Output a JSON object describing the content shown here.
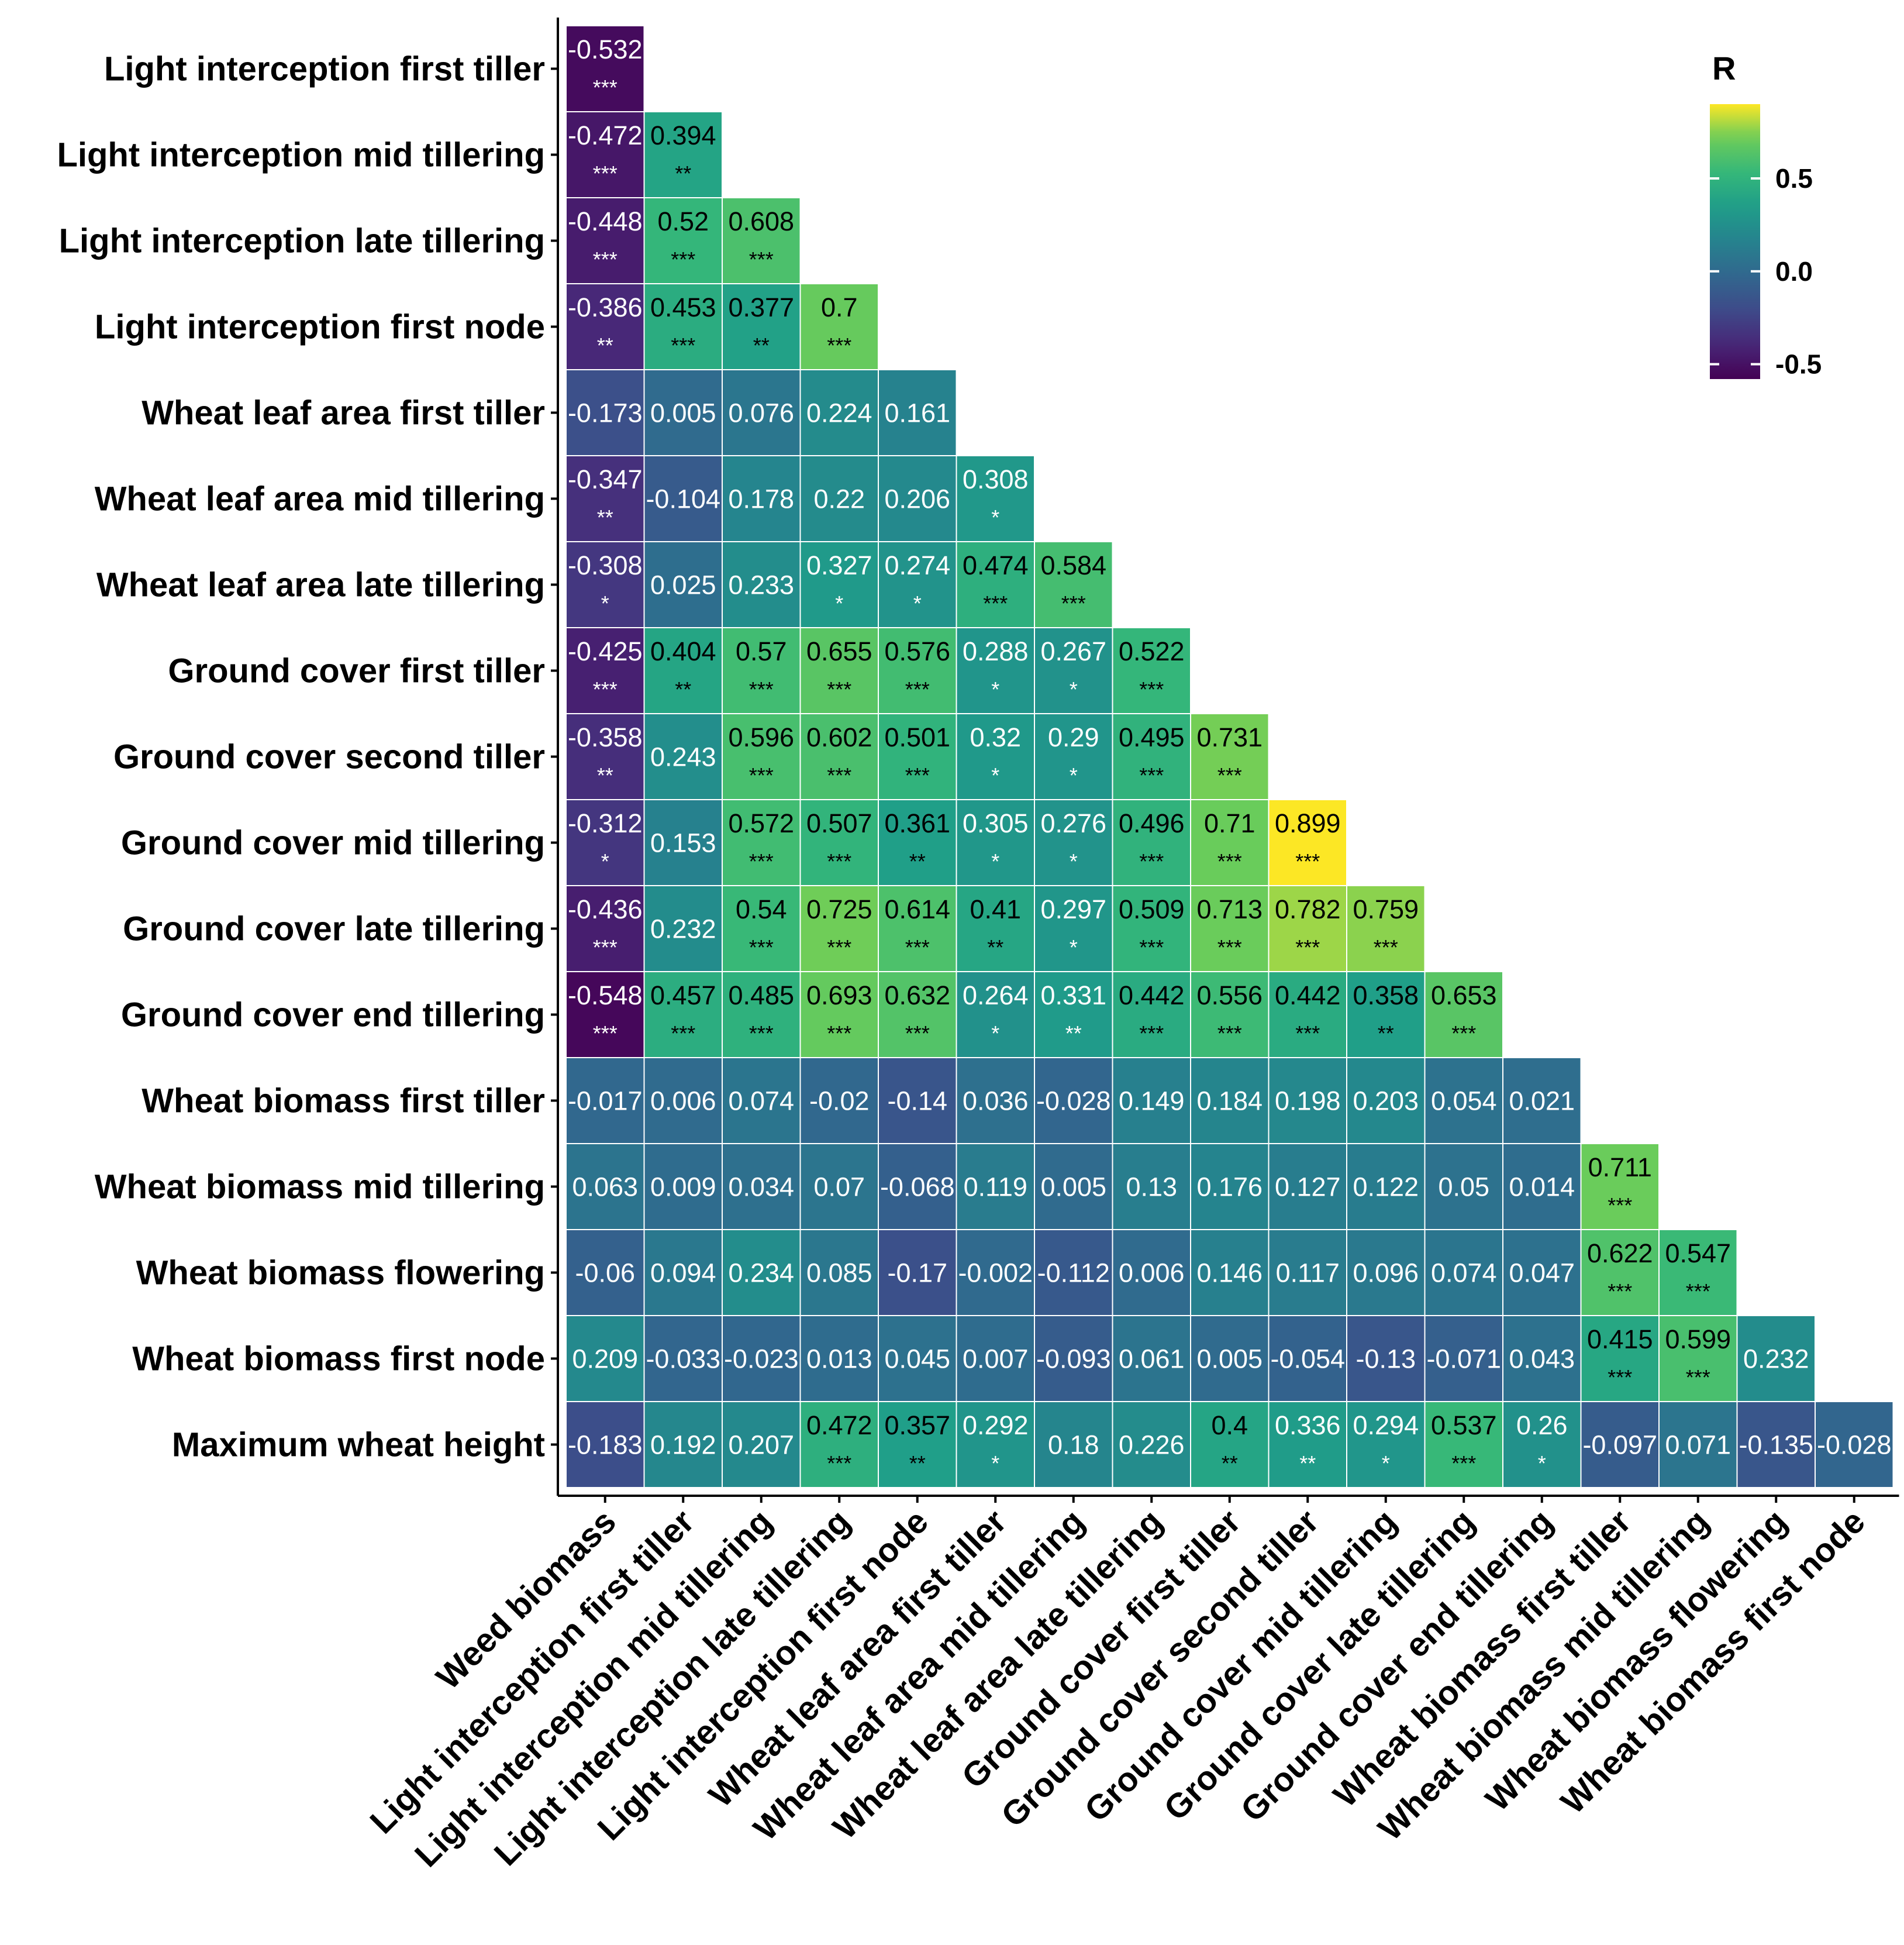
{
  "chart_data": {
    "type": "heatmap",
    "title": "",
    "xlabel": "",
    "ylabel": "",
    "row_labels": [
      "Light interception first tiller",
      "Light interception mid tillering",
      "Light interception late tillering",
      "Light interception first node",
      "Wheat leaf area first tiller",
      "Wheat leaf area mid tillering",
      "Wheat leaf area late tillering",
      "Ground cover first tiller",
      "Ground cover second tiller",
      "Ground cover mid tillering",
      "Ground cover late tillering",
      "Ground cover end tillering",
      "Wheat biomass first tiller",
      "Wheat biomass mid tillering",
      "Wheat biomass flowering",
      "Wheat biomass first node",
      "Maximum wheat height"
    ],
    "col_labels": [
      "Weed biomass",
      "Light interception first tiller",
      "Light interception mid tillering",
      "Light interception late tillering",
      "Light interception first node",
      "Wheat leaf area first tiller",
      "Wheat leaf area mid tillering",
      "Wheat leaf area late tillering",
      "Ground cover first tiller",
      "Ground cover second tiller",
      "Ground cover mid tillering",
      "Ground cover late tillering",
      "Ground cover end tillering",
      "Wheat biomass first tiller",
      "Wheat biomass mid tillering",
      "Wheat biomass flowering",
      "Wheat biomass first node"
    ],
    "values": [
      [
        -0.532
      ],
      [
        -0.472,
        0.394
      ],
      [
        -0.448,
        0.52,
        0.608
      ],
      [
        -0.386,
        0.453,
        0.377,
        0.7
      ],
      [
        -0.173,
        0.005,
        0.076,
        0.224,
        0.161
      ],
      [
        -0.347,
        -0.104,
        0.178,
        0.22,
        0.206,
        0.308
      ],
      [
        -0.308,
        0.025,
        0.233,
        0.327,
        0.274,
        0.474,
        0.584
      ],
      [
        -0.425,
        0.404,
        0.57,
        0.655,
        0.576,
        0.288,
        0.267,
        0.522
      ],
      [
        -0.358,
        0.243,
        0.596,
        0.602,
        0.501,
        0.32,
        0.29,
        0.495,
        0.731
      ],
      [
        -0.312,
        0.153,
        0.572,
        0.507,
        0.361,
        0.305,
        0.276,
        0.496,
        0.71,
        0.899
      ],
      [
        -0.436,
        0.232,
        0.54,
        0.725,
        0.614,
        0.41,
        0.297,
        0.509,
        0.713,
        0.782,
        0.759
      ],
      [
        -0.548,
        0.457,
        0.485,
        0.693,
        0.632,
        0.264,
        0.331,
        0.442,
        0.556,
        0.442,
        0.358,
        0.653
      ],
      [
        -0.017,
        0.006,
        0.074,
        -0.02,
        -0.14,
        0.036,
        -0.028,
        0.149,
        0.184,
        0.198,
        0.203,
        0.054,
        0.021
      ],
      [
        0.063,
        0.009,
        0.034,
        0.07,
        -0.068,
        0.119,
        0.005,
        0.13,
        0.176,
        0.127,
        0.122,
        0.05,
        0.014,
        0.711
      ],
      [
        -0.06,
        0.094,
        0.234,
        0.085,
        -0.17,
        -0.002,
        -0.112,
        0.006,
        0.146,
        0.117,
        0.096,
        0.074,
        0.047,
        0.622,
        0.547
      ],
      [
        0.209,
        -0.033,
        -0.023,
        0.013,
        0.045,
        0.007,
        -0.093,
        0.061,
        0.005,
        -0.054,
        -0.13,
        -0.071,
        0.043,
        0.415,
        0.599,
        0.232
      ],
      [
        -0.183,
        0.192,
        0.207,
        0.472,
        0.357,
        0.292,
        0.18,
        0.226,
        0.4,
        0.336,
        0.294,
        0.537,
        0.26,
        -0.097,
        0.071,
        -0.135,
        -0.028
      ]
    ],
    "significance": [
      [
        "***"
      ],
      [
        "***",
        "**"
      ],
      [
        "***",
        "***",
        "***"
      ],
      [
        "**",
        "***",
        "**",
        "***"
      ],
      [
        "",
        "",
        "",
        "",
        ""
      ],
      [
        "**",
        "",
        "",
        "",
        "",
        "*"
      ],
      [
        "*",
        "",
        "",
        "*",
        "*",
        "***",
        "***"
      ],
      [
        "***",
        "**",
        "***",
        "***",
        "***",
        "*",
        "*",
        "***"
      ],
      [
        "**",
        "",
        "***",
        "***",
        "***",
        "*",
        "*",
        "***",
        "***"
      ],
      [
        "*",
        "",
        "***",
        "***",
        "**",
        "*",
        "*",
        "***",
        "***",
        "***"
      ],
      [
        "***",
        "",
        "***",
        "***",
        "***",
        "**",
        "*",
        "***",
        "***",
        "***",
        "***"
      ],
      [
        "***",
        "***",
        "***",
        "***",
        "***",
        "*",
        "**",
        "***",
        "***",
        "***",
        "**",
        "***"
      ],
      [
        "",
        "",
        "",
        "",
        "",
        "",
        "",
        "",
        "",
        "",
        "",
        "",
        ""
      ],
      [
        "",
        "",
        "",
        "",
        "",
        "",
        "",
        "",
        "",
        "",
        "",
        "",
        "",
        "***"
      ],
      [
        "",
        "",
        "",
        "",
        "",
        "",
        "",
        "",
        "",
        "",
        "",
        "",
        "",
        "***",
        "***"
      ],
      [
        "",
        "",
        "",
        "",
        "",
        "",
        "",
        "",
        "",
        "",
        "",
        "",
        "",
        "***",
        "***",
        ""
      ],
      [
        "",
        "",
        "",
        "***",
        "**",
        "*",
        "",
        "",
        "**",
        "**",
        "*",
        "***",
        "*",
        "",
        "",
        "",
        ""
      ]
    ],
    "legend": {
      "title": "R",
      "ticks": [
        0.5,
        0.0,
        -0.5
      ],
      "tick_labels": [
        "0.5",
        "0.0",
        "-0.5"
      ],
      "range": [
        -0.58,
        0.9
      ],
      "placement": "top-right"
    },
    "colors": [
      "#440154",
      "#3b528b",
      "#21908c",
      "#5dc963",
      "#fde725"
    ]
  }
}
